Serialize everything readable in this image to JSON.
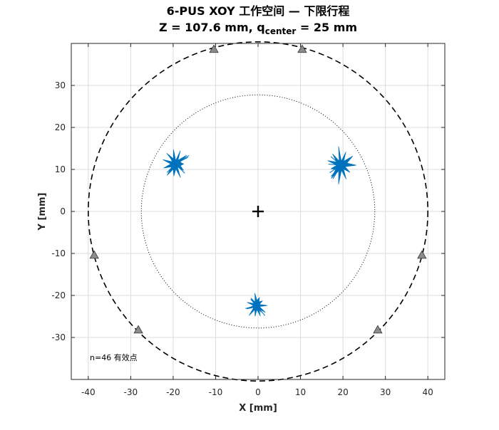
{
  "chart_data": {
    "type": "scatter",
    "title_line1": "6-PUS XOY 工作空间 — 下限行程",
    "title_line2": {
      "prefix": "Z = 107.6 mm,  q",
      "subscript": "center",
      "suffix": " = 25 mm"
    },
    "xlabel": "X [mm]",
    "ylabel": "Y [mm]",
    "xlim": [
      -44,
      44
    ],
    "ylim": [
      -40,
      40
    ],
    "xticks": [
      -40,
      -30,
      -20,
      -10,
      0,
      10,
      20,
      30,
      40
    ],
    "yticks": [
      -30,
      -20,
      -10,
      0,
      10,
      20,
      30
    ],
    "grid": true,
    "annotation": "n=46 有效点",
    "outer_circle": {
      "radius": 40,
      "style": "dashed",
      "color": "#000000"
    },
    "inner_circle": {
      "radius": 27.5,
      "style": "dotted",
      "color": "#000000"
    },
    "center_marker": {
      "x": 0,
      "y": 0,
      "symbol": "+",
      "color": "#000000"
    },
    "anchor_markers": {
      "symbol": "triangle",
      "color": "#8c8c8c",
      "points": [
        {
          "x": -10.4,
          "y": 38.6
        },
        {
          "x": 10.4,
          "y": 38.6
        },
        {
          "x": -38.6,
          "y": -10.4
        },
        {
          "x": 38.6,
          "y": -10.4
        },
        {
          "x": -28.2,
          "y": -28.2
        },
        {
          "x": 28.2,
          "y": -28.2
        }
      ]
    },
    "workspace_clusters": {
      "color": "#0072bd",
      "clusters": [
        {
          "name": "",
          "x": -19.5,
          "y": 11.3,
          "spread": 2.2
        },
        {
          "name": "",
          "x": 19.5,
          "y": 11.0,
          "spread": 2.6
        },
        {
          "name": "",
          "x": -0.4,
          "y": -22.4,
          "spread": 1.8
        }
      ]
    }
  }
}
